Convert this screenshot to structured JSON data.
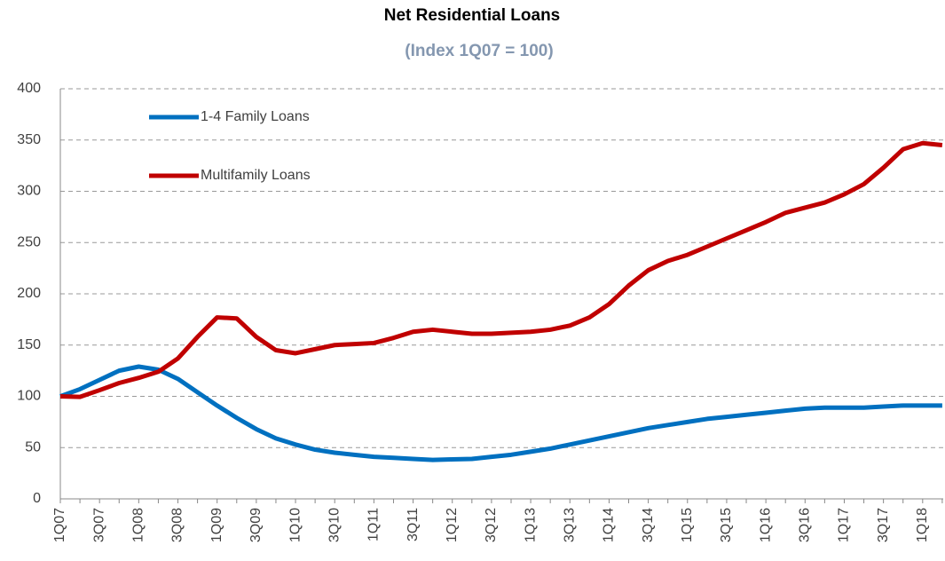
{
  "chart_data": {
    "type": "line",
    "title": "Net Residential Loans",
    "subtitle": "(Index 1Q07 = 100)",
    "categories": [
      "1Q07",
      null,
      "3Q07",
      null,
      "1Q08",
      null,
      "3Q08",
      null,
      "1Q09",
      null,
      "3Q09",
      null,
      "1Q10",
      null,
      "3Q10",
      null,
      "1Q11",
      null,
      "3Q11",
      null,
      "1Q12",
      null,
      "3Q12",
      null,
      "1Q13",
      null,
      "3Q13",
      null,
      "1Q14",
      null,
      "3Q14",
      null,
      "1Q15",
      null,
      "3Q15",
      null,
      "1Q16",
      null,
      "3Q16",
      null,
      "1Q17",
      null,
      "3Q17",
      null,
      "1Q18",
      null
    ],
    "series": [
      {
        "name": "1-4 Family Loans",
        "color": "#0070c0",
        "values": [
          100,
          107,
          116,
          125,
          129,
          126,
          117,
          104,
          91,
          79,
          68,
          59,
          53,
          48,
          45,
          43,
          41,
          40,
          39,
          38,
          38.5,
          39,
          41,
          43,
          46,
          49,
          53,
          57,
          61,
          65,
          69,
          72,
          75,
          78,
          80,
          82,
          84,
          86,
          88,
          89,
          89,
          89,
          90,
          91,
          91,
          91
        ]
      },
      {
        "name": "Multifamily Loans",
        "color": "#c00000",
        "values": [
          100,
          99.5,
          106,
          113,
          118,
          124,
          137,
          158,
          177,
          176,
          158,
          145,
          142,
          146,
          150,
          151,
          152,
          157,
          163,
          165,
          163,
          161,
          161,
          162,
          163,
          165,
          169,
          177,
          190,
          208,
          223,
          232,
          238,
          246,
          254,
          262,
          270,
          279,
          284,
          289,
          297,
          307,
          323,
          341,
          347,
          345
        ]
      }
    ],
    "ylim": [
      0,
      400
    ],
    "yticks": [
      0,
      50,
      100,
      150,
      200,
      250,
      300,
      350,
      400
    ],
    "grid": true,
    "legend": "upper left"
  }
}
